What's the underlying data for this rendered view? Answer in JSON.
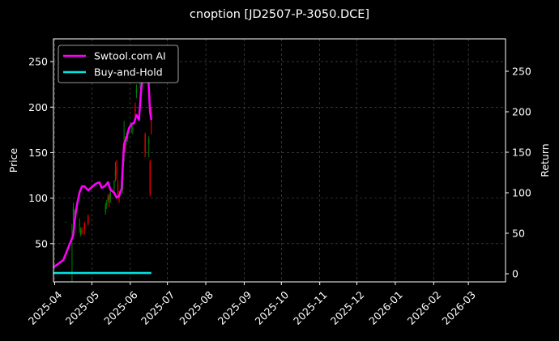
{
  "chart_data": {
    "type": "line",
    "title": "cnoption [JD2507-P-3050.DCE]",
    "ylabel_left": "Price",
    "ylabel_right": "Return",
    "ylim_left": [
      8,
      275
    ],
    "ylim_right": [
      -10,
      290
    ],
    "xlim": [
      "2025-03-31",
      "2026-03-31"
    ],
    "x_ticks": [
      "2025-04",
      "2025-05",
      "2025-06",
      "2025-07",
      "2025-08",
      "2025-09",
      "2025-10",
      "2025-11",
      "2025-12",
      "2026-01",
      "2026-02",
      "2026-03"
    ],
    "y_ticks_left": [
      50,
      100,
      150,
      200,
      250
    ],
    "y_ticks_right": [
      0,
      50,
      100,
      150,
      200,
      250
    ],
    "grid": true,
    "legend_position": "top-left",
    "colors": {
      "background": "#000000",
      "text": "#ffffff",
      "grid": "#555555",
      "candle_up": "#008000",
      "candle_down": "#ff0000",
      "strategy": "#ff00ff",
      "buy_and_hold": "#00e5e5"
    },
    "series": [
      {
        "name": "Swtool.com AI",
        "axis": "right",
        "x": [
          "2025-03-31",
          "2025-04-08",
          "2025-04-14",
          "2025-04-16",
          "2025-04-17",
          "2025-04-19",
          "2025-04-21",
          "2025-04-23",
          "2025-04-25",
          "2025-04-28",
          "2025-05-01",
          "2025-05-04",
          "2025-05-07",
          "2025-05-09",
          "2025-05-12",
          "2025-05-14",
          "2025-05-16",
          "2025-05-19",
          "2025-05-21",
          "2025-05-23",
          "2025-05-25",
          "2025-05-27",
          "2025-05-29",
          "2025-05-31",
          "2025-06-02",
          "2025-06-04",
          "2025-06-06",
          "2025-06-08",
          "2025-06-10",
          "2025-06-12",
          "2025-06-14",
          "2025-06-15",
          "2025-06-16",
          "2025-06-17",
          "2025-06-18"
        ],
        "values": [
          8,
          17,
          40,
          48,
          65,
          85,
          100,
          108,
          108,
          103,
          107,
          111,
          113,
          106,
          109,
          113,
          104,
          100,
          94,
          96,
          105,
          160,
          168,
          180,
          185,
          186,
          196,
          190,
          230,
          250,
          262,
          258,
          230,
          200,
          190
        ]
      },
      {
        "name": "Buy-and-Hold",
        "axis": "right",
        "x": [
          "2025-03-31",
          "2025-06-18"
        ],
        "values": [
          1,
          1
        ]
      }
    ],
    "candles": [
      {
        "x": "2025-04-10",
        "open": 74,
        "close": 74,
        "high": 74,
        "low": 73
      },
      {
        "x": "2025-04-15",
        "open": 50,
        "close": 50,
        "high": 72,
        "low": 8
      },
      {
        "x": "2025-04-16",
        "open": 75,
        "close": 90,
        "high": 95,
        "low": 72
      },
      {
        "x": "2025-04-17",
        "open": 82,
        "close": 86,
        "high": 88,
        "low": 80
      },
      {
        "x": "2025-04-21",
        "open": 70,
        "close": 72,
        "high": 78,
        "low": 62
      },
      {
        "x": "2025-04-22",
        "open": 60,
        "close": 65,
        "high": 68,
        "low": 58
      },
      {
        "x": "2025-04-23",
        "open": 65,
        "close": 63,
        "high": 68,
        "low": 60
      },
      {
        "x": "2025-04-25",
        "open": 72,
        "close": 66,
        "high": 74,
        "low": 60
      },
      {
        "x": "2025-04-28",
        "open": 80,
        "close": 72,
        "high": 82,
        "low": 70
      },
      {
        "x": "2025-05-12",
        "open": 85,
        "close": 92,
        "high": 95,
        "low": 82
      },
      {
        "x": "2025-05-13",
        "open": 92,
        "close": 95,
        "high": 98,
        "low": 88
      },
      {
        "x": "2025-05-14",
        "open": 98,
        "close": 100,
        "high": 104,
        "low": 95
      },
      {
        "x": "2025-05-15",
        "open": 102,
        "close": 98,
        "high": 105,
        "low": 90
      },
      {
        "x": "2025-05-16",
        "open": 100,
        "close": 108,
        "high": 110,
        "low": 95
      },
      {
        "x": "2025-05-19",
        "open": 110,
        "close": 118,
        "high": 120,
        "low": 105
      },
      {
        "x": "2025-05-20",
        "open": 125,
        "close": 130,
        "high": 140,
        "low": 118
      },
      {
        "x": "2025-05-21",
        "open": 135,
        "close": 128,
        "high": 142,
        "low": 120
      },
      {
        "x": "2025-05-22",
        "open": 115,
        "close": 110,
        "high": 120,
        "low": 100
      },
      {
        "x": "2025-05-23",
        "open": 102,
        "close": 98,
        "high": 108,
        "low": 95
      },
      {
        "x": "2025-05-26",
        "open": 110,
        "close": 112,
        "high": 118,
        "low": 105
      },
      {
        "x": "2025-05-27",
        "open": 150,
        "close": 160,
        "high": 185,
        "low": 140
      },
      {
        "x": "2025-05-28",
        "open": 160,
        "close": 155,
        "high": 168,
        "low": 150
      },
      {
        "x": "2025-05-29",
        "open": 165,
        "close": 168,
        "high": 172,
        "low": 158
      },
      {
        "x": "2025-05-30",
        "open": 170,
        "close": 172,
        "high": 175,
        "low": 162
      },
      {
        "x": "2025-06-02",
        "open": 178,
        "close": 180,
        "high": 182,
        "low": 172
      },
      {
        "x": "2025-06-03",
        "open": 175,
        "close": 178,
        "high": 182,
        "low": 170
      },
      {
        "x": "2025-06-05",
        "open": 200,
        "close": 195,
        "high": 205,
        "low": 190
      },
      {
        "x": "2025-06-06",
        "open": 215,
        "close": 220,
        "high": 225,
        "low": 210
      },
      {
        "x": "2025-06-09",
        "open": 225,
        "close": 230,
        "high": 235,
        "low": 220
      },
      {
        "x": "2025-06-10",
        "open": 230,
        "close": 232,
        "high": 238,
        "low": 228
      },
      {
        "x": "2025-06-11",
        "open": 240,
        "close": 250,
        "high": 268,
        "low": 235
      },
      {
        "x": "2025-06-12",
        "open": 245,
        "close": 250,
        "high": 258,
        "low": 240
      },
      {
        "x": "2025-06-13",
        "open": 170,
        "close": 150,
        "high": 172,
        "low": 145
      },
      {
        "x": "2025-06-16",
        "open": 160,
        "close": 165,
        "high": 168,
        "low": 145
      },
      {
        "x": "2025-06-17",
        "open": 140,
        "close": 105,
        "high": 142,
        "low": 102
      },
      {
        "x": "2025-06-18",
        "open": 195,
        "close": 190,
        "high": 200,
        "low": 170
      }
    ]
  }
}
